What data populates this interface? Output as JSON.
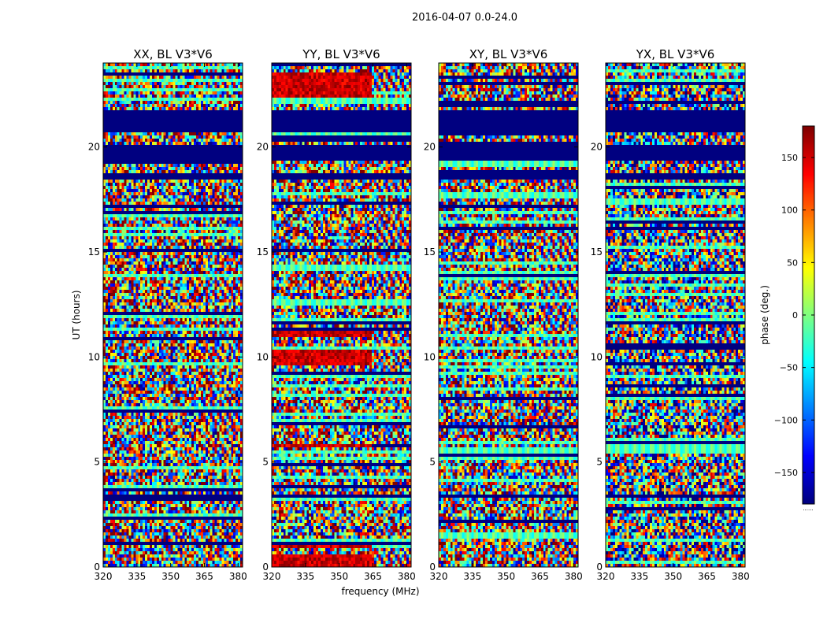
{
  "figure": {
    "suptitle": "2016-04-07 0.0-24.0",
    "xlabel": "frequency (MHz)",
    "ylabel": "UT (hours)",
    "colorbar_label": "phase (deg.)",
    "colorbar_footnote": "......"
  },
  "chart_data": {
    "type": "heatmap",
    "panels": [
      {
        "title": "XX, BL V3*V6",
        "pol": "XX"
      },
      {
        "title": "YY, BL V3*V6",
        "pol": "YY"
      },
      {
        "title": "XY, BL V3*V6",
        "pol": "XY"
      },
      {
        "title": "YX, BL V3*V6",
        "pol": "YX"
      }
    ],
    "x": {
      "label": "frequency (MHz)",
      "range": [
        320,
        382
      ],
      "ticks": [
        "320",
        "335",
        "350",
        "365",
        "380"
      ],
      "tick_values": [
        320,
        335,
        350,
        365,
        380
      ]
    },
    "y": {
      "label": "UT (hours)",
      "range": [
        0,
        24
      ],
      "ticks": [
        "0",
        "5",
        "10",
        "15",
        "20"
      ],
      "tick_values": [
        0,
        5,
        10,
        15,
        20
      ]
    },
    "colorbar": {
      "label": "phase (deg.)",
      "range": [
        -180,
        180
      ],
      "ticks": [
        "150",
        "100",
        "50",
        "0",
        "−50",
        "−100",
        "−150"
      ],
      "tick_values": [
        150,
        100,
        50,
        0,
        -50,
        -100,
        -150
      ],
      "colormap": "jet"
    },
    "flagged_ut_bands": [
      [
        20.7,
        21.8
      ],
      [
        19.3,
        20.1
      ],
      [
        18.4,
        18.7
      ],
      [
        3.3,
        3.45
      ]
    ],
    "high_phase_ut_bands_yy": [
      [
        9.6,
        10.3
      ],
      [
        11.0,
        11.3
      ],
      [
        22.3,
        23.5
      ],
      [
        0.0,
        0.6
      ],
      [
        0.9,
        1.1
      ],
      [
        5.7,
        5.9
      ]
    ],
    "note": "Phase values vs frequency and UT for each polarization of baseline V3*V6; data rendered as noisy jet-colored waterfall."
  }
}
